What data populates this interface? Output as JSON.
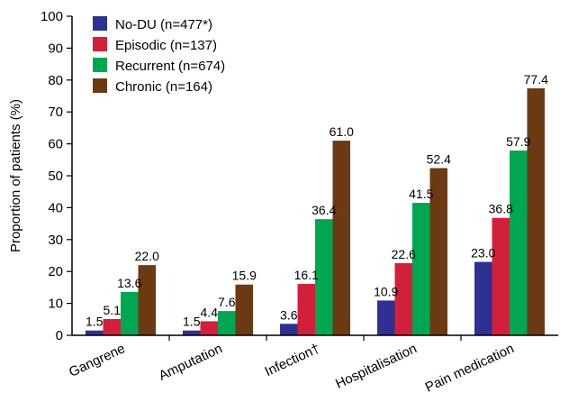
{
  "chart_data": {
    "type": "bar",
    "title": "",
    "xlabel": "",
    "ylabel": "Proportion of patients (%)",
    "ylim": [
      0,
      100
    ],
    "yticks": [
      "0",
      "10",
      "20",
      "30",
      "40",
      "50",
      "60",
      "70",
      "80",
      "90",
      "100"
    ],
    "grid": false,
    "legend_position": "top-left",
    "categories": [
      "Gangrene",
      "Amputation",
      "Infection†",
      "Hospitalisation",
      "Pain medication"
    ],
    "series": [
      {
        "name": "No-DU (n=477*)",
        "color": "#2e3192",
        "values": [
          1.5,
          1.5,
          3.6,
          10.9,
          23.0
        ],
        "labels": [
          "1.5",
          "1.5",
          "3.6",
          "10.9",
          "23.0"
        ]
      },
      {
        "name": "Episodic (n=137)",
        "color": "#d21f3c",
        "values": [
          5.1,
          4.4,
          16.1,
          22.6,
          36.8
        ],
        "labels": [
          "5.1",
          "4.4",
          "16.1",
          "22.6",
          "36.8"
        ]
      },
      {
        "name": "Recurrent (n=674)",
        "color": "#00a651",
        "values": [
          13.6,
          7.6,
          36.4,
          41.5,
          57.9
        ],
        "labels": [
          "13.6",
          "7.6",
          "36.4",
          "41.5",
          "57.9"
        ]
      },
      {
        "name": "Chronic (n=164)",
        "color": "#6b3a12",
        "values": [
          22.0,
          15.9,
          61.0,
          52.4,
          77.4
        ],
        "labels": [
          "22.0",
          "15.9",
          "61.0",
          "52.4",
          "77.4"
        ]
      }
    ]
  }
}
